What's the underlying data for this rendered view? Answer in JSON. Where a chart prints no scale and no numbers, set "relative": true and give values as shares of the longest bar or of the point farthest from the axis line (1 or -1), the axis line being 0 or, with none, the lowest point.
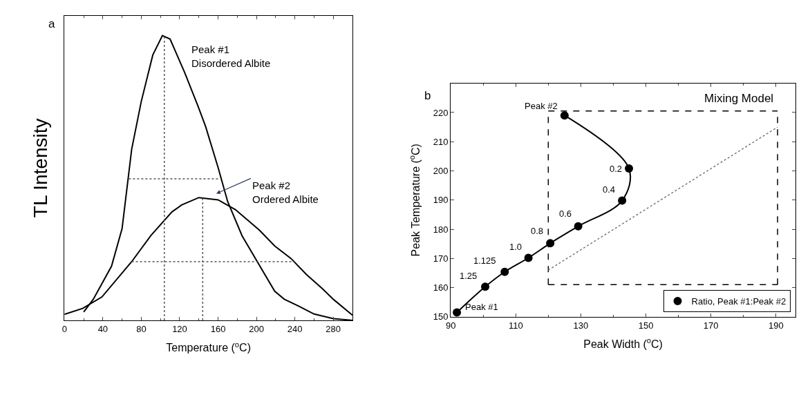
{
  "chart_data": [
    {
      "type": "line",
      "xlabel": "Temperature ($^{o}$C)",
      "ylabel": "TL Intensity",
      "relative": true,
      "xlim": [
        0,
        300
      ],
      "xticks": [
        0,
        40,
        80,
        120,
        160,
        200,
        240,
        280
      ],
      "legend": false,
      "annotations": [
        "a",
        {
          "text": "Peak #1\nDisordered Albite",
          "x": 102,
          "y": 1.0
        },
        "Peak #2\nOrdered Albite"
      ],
      "series": [
        {
          "color": "#000000",
          "x": [
            20,
            30,
            49,
            60,
            70,
            80,
            92,
            102,
            110,
            125,
            139,
            147,
            160,
            170,
            185,
            219,
            229,
            244,
            260,
            280,
            300
          ],
          "values": [
            0.029,
            0.074,
            0.19,
            0.322,
            0.601,
            0.769,
            0.932,
            1.0,
            0.988,
            0.872,
            0.753,
            0.681,
            0.537,
            0.417,
            0.297,
            0.102,
            0.074,
            0.05,
            0.022,
            0.006,
            0
          ]
        },
        {
          "color": "#000000",
          "x": [
            0,
            19,
            39,
            70,
            90,
            112,
            122,
            140,
            160,
            178,
            203,
            219,
            236,
            252,
            269,
            280,
            300
          ],
          "values": [
            0.021,
            0.042,
            0.082,
            0.206,
            0.298,
            0.381,
            0.405,
            0.431,
            0.423,
            0.389,
            0.317,
            0.261,
            0.217,
            0.161,
            0.11,
            0.074,
            0.018
          ]
        },
        {
          "color": "#555555",
          "line_style": "dotted",
          "x": [
            104,
            104
          ],
          "values": [
            0,
            1.0
          ]
        },
        {
          "color": "#555555",
          "line_style": "dotted",
          "x": [
            144,
            144
          ],
          "values": [
            0,
            0.431
          ]
        },
        {
          "color": "#555555",
          "line_style": "dotted",
          "x": [
            67,
            162
          ],
          "values": [
            0.497,
            0.497
          ]
        },
        {
          "color": "#555555",
          "line_style": "dotted",
          "x": [
            70,
            238
          ],
          "values": [
            0.206,
            0.206
          ]
        }
      ]
    },
    {
      "type": "line",
      "xlabel": "Peak Width ($^{o}$C)",
      "ylabel": "Peak Temperature ($^{o}$C)",
      "xlim": [
        90,
        196
      ],
      "xticks": [
        90,
        110,
        130,
        150,
        170,
        190
      ],
      "ylim": [
        150,
        230
      ],
      "yticks": [
        150,
        160,
        170,
        180,
        190,
        200,
        210,
        220
      ],
      "legend": "bottom right",
      "annotations": [
        "b",
        "Mixing Model",
        {
          "text": "Peak #1",
          "x": 91.9,
          "y": 151.5
        },
        {
          "text": "1.25",
          "x": 100.6,
          "y": 160.3
        },
        {
          "text": "1.125",
          "x": 106.6,
          "y": 165.4
        },
        {
          "text": "1.0",
          "x": 113.9,
          "y": 170.2
        },
        {
          "text": "0.8",
          "x": 120.6,
          "y": 175.2
        },
        {
          "text": "0.6",
          "x": 129.2,
          "y": 181.0
        },
        {
          "text": "0.4",
          "x": 142.7,
          "y": 189.8
        },
        {
          "text": "0.2",
          "x": 144.8,
          "y": 200.8
        },
        {
          "text": "Peak #2",
          "x": 125.0,
          "y": 219.0
        }
      ],
      "series": [
        {
          "color": "#000000",
          "x": [
            91.9,
            100.6,
            106.6,
            113.9,
            120.6,
            129.2,
            142.7,
            144.8,
            125.0
          ],
          "values": [
            151.5,
            160.3,
            165.4,
            170.2,
            175.2,
            181.0,
            189.8,
            200.8,
            219.0
          ]
        },
        {
          "type": "scatter",
          "name": "Ratio, Peak #1:Peak #2",
          "marker": "circle",
          "color": "#000000",
          "x": [
            91.9,
            100.6,
            106.6,
            113.9,
            120.6,
            129.2,
            142.7,
            144.8,
            125.0
          ],
          "values": [
            151.5,
            160.3,
            165.4,
            170.2,
            175.2,
            181.0,
            189.8,
            200.8,
            219.0
          ]
        },
        {
          "color": "#000000",
          "line_style": "dashed",
          "x": [
            120,
            190.5
          ],
          "values": [
            220.5,
            220.5
          ]
        },
        {
          "color": "#000000",
          "line_style": "dashed",
          "x": [
            120,
            190.5
          ],
          "values": [
            161,
            161
          ]
        },
        {
          "color": "#000000",
          "line_style": "dashed",
          "x": [
            120,
            120
          ],
          "values": [
            161,
            220.5
          ]
        },
        {
          "color": "#000000",
          "line_style": "dashed",
          "x": [
            190.5,
            190.5
          ],
          "values": [
            161,
            220.5
          ]
        },
        {
          "color": "#777777",
          "line_style": "dotted",
          "x": [
            120,
            190.5
          ],
          "values": [
            166,
            215
          ]
        }
      ]
    }
  ]
}
